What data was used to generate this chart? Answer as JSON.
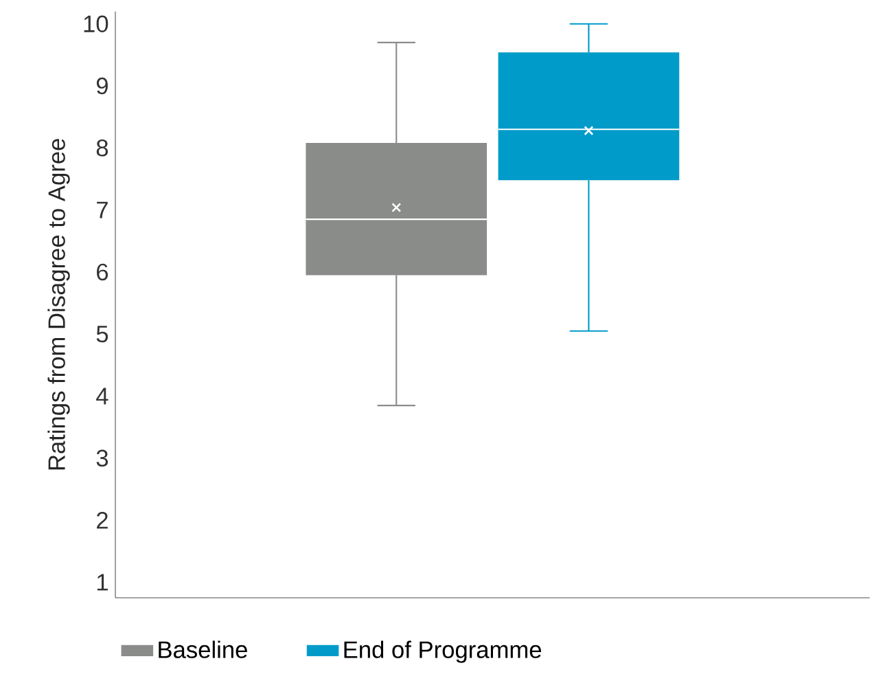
{
  "chart_data": {
    "type": "box",
    "ylabel": "Ratings from Disagree to Agree",
    "categories": [
      null
    ],
    "series": [
      {
        "name": "Baseline",
        "color": "#8a8c8a",
        "boxes": [
          {
            "low": 3.85,
            "q1": 5.95,
            "median": 6.85,
            "q3": 8.08,
            "high": 9.7,
            "mean": 7.04
          }
        ]
      },
      {
        "name": "End of Programme",
        "color": "#009bc9",
        "boxes": [
          {
            "low": 5.05,
            "q1": 7.48,
            "median": 8.3,
            "q3": 9.54,
            "high": 10.0,
            "mean": 8.28
          }
        ]
      }
    ],
    "ylim": [
      0.75,
      10.2
    ],
    "yticks": [
      1,
      2,
      3,
      4,
      5,
      6,
      7,
      8,
      9,
      10
    ],
    "grid": false,
    "legend": "bottom",
    "marker": "cross"
  }
}
